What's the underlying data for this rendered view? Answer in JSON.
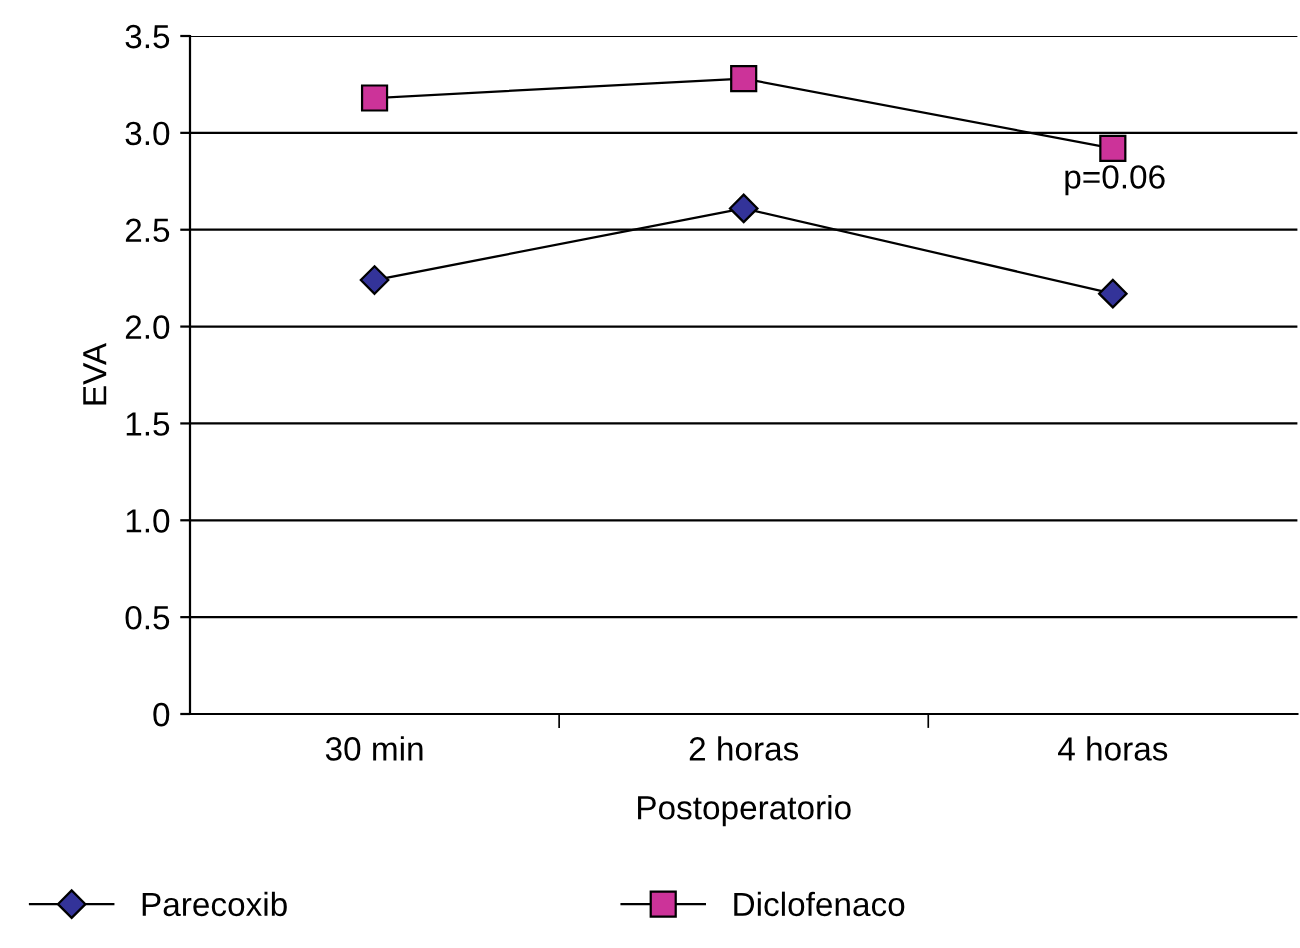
{
  "chart_data": {
    "type": "line",
    "ylabel": "EVA",
    "xlabel": "Postoperatorio",
    "categories": [
      "30 min",
      "2 horas",
      "4 horas"
    ],
    "series": [
      {
        "name": "Parecoxib",
        "color": "#333399",
        "marker": "diamond",
        "values": [
          2.24,
          2.61,
          2.17
        ]
      },
      {
        "name": "Diclofenaco",
        "color": "#cc3399",
        "marker": "square",
        "values": [
          3.18,
          3.28,
          2.92
        ]
      }
    ],
    "ylim": [
      0,
      3.5
    ],
    "yticks": [
      0,
      0.5,
      {
        "value": 1,
        "label": "1.0"
      },
      1.5,
      {
        "value": 2,
        "label": "2.0"
      },
      2.5,
      {
        "value": 3,
        "label": "3.0"
      },
      3.5
    ],
    "grid": "y",
    "legend": "bottom",
    "line_style": "solid",
    "annotations": [
      "p=0.06"
    ]
  }
}
